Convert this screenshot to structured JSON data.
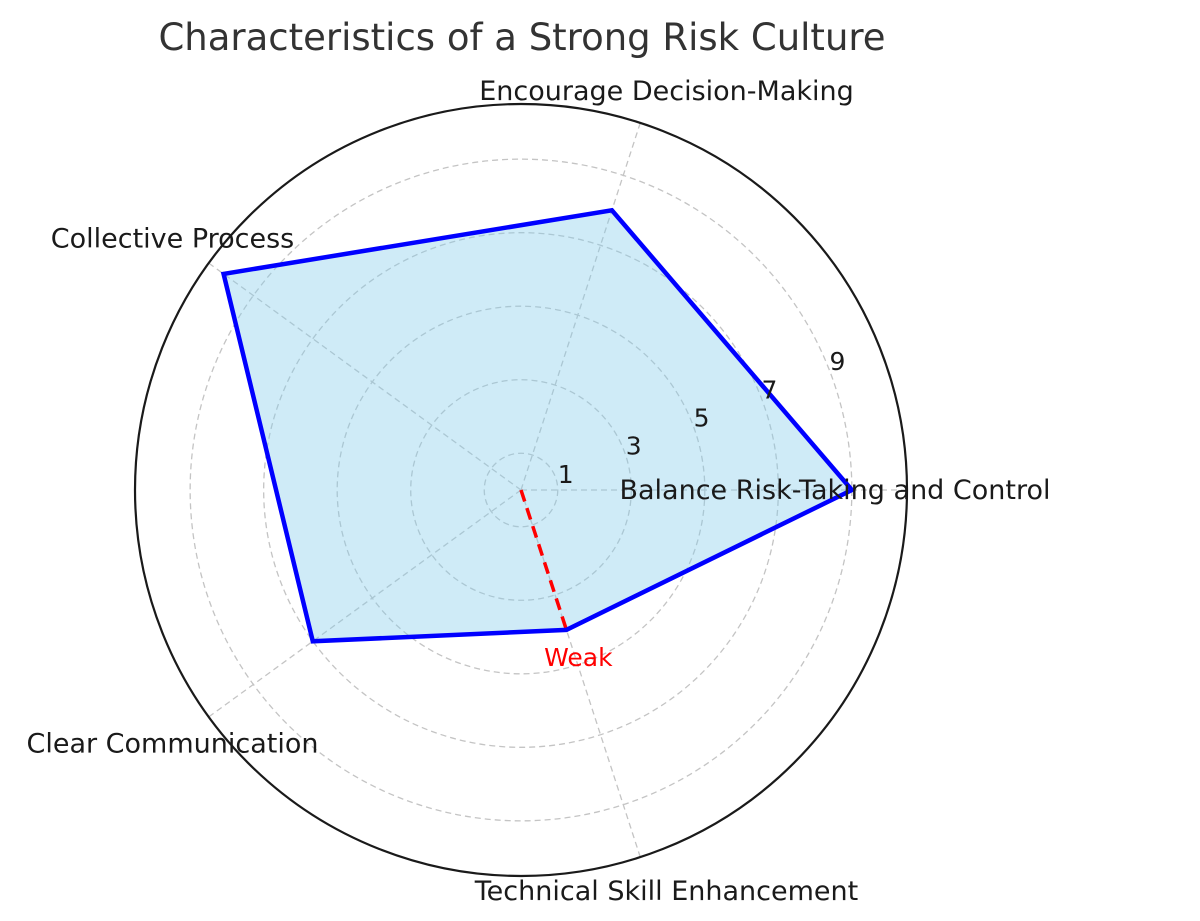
{
  "chart_data": {
    "type": "radar",
    "title": "Characteristics of a Strong Risk Culture",
    "categories": [
      "Balance Risk-Taking and Control",
      "Encourage Decision-Making",
      "Collective Process",
      "Clear Communication",
      "Technical Skill Enhancement"
    ],
    "series": [
      {
        "values": [
          9,
          8,
          10,
          7,
          4
        ],
        "line_color": "#0000ff",
        "fill_color": "#87ceeb"
      }
    ],
    "r_ticks": [
      "1",
      "3",
      "5",
      "7",
      "9"
    ],
    "rlim": [
      0,
      10.5
    ],
    "grid": true,
    "annotation": {
      "text": "Weak",
      "category": "Technical Skill Enhancement",
      "value": 4,
      "color": "#ff0000"
    }
  }
}
